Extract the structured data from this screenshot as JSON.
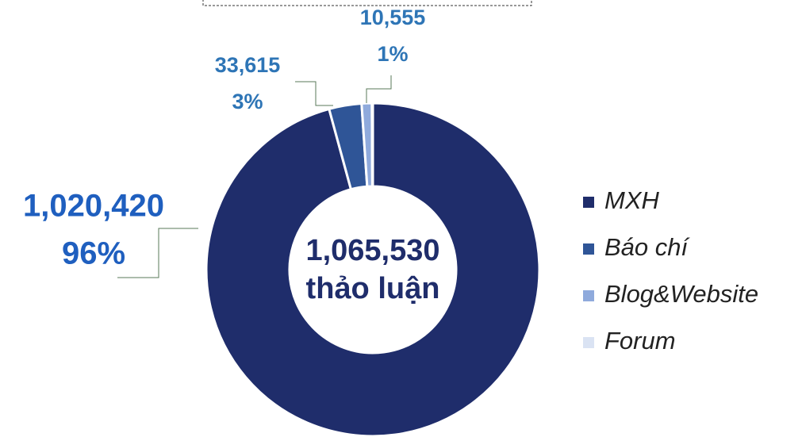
{
  "chart_data": {
    "type": "pie",
    "categories": [
      "MXH",
      "Báo chí",
      "Blog&Website",
      "Forum"
    ],
    "values": [
      1020420,
      33615,
      10555,
      940
    ],
    "value_labels": [
      "1,020,420",
      "33,615",
      "10,555",
      null
    ],
    "percents": [
      96,
      3,
      1,
      null
    ],
    "percent_labels": [
      "96%",
      "3%",
      "1%",
      null
    ],
    "colors": [
      "#1f2d6b",
      "#2f5597",
      "#8faadc",
      "#dae3f3"
    ],
    "center_label": [
      "1,065,530",
      "thảo luận"
    ],
    "donut": true,
    "legend": "right"
  }
}
